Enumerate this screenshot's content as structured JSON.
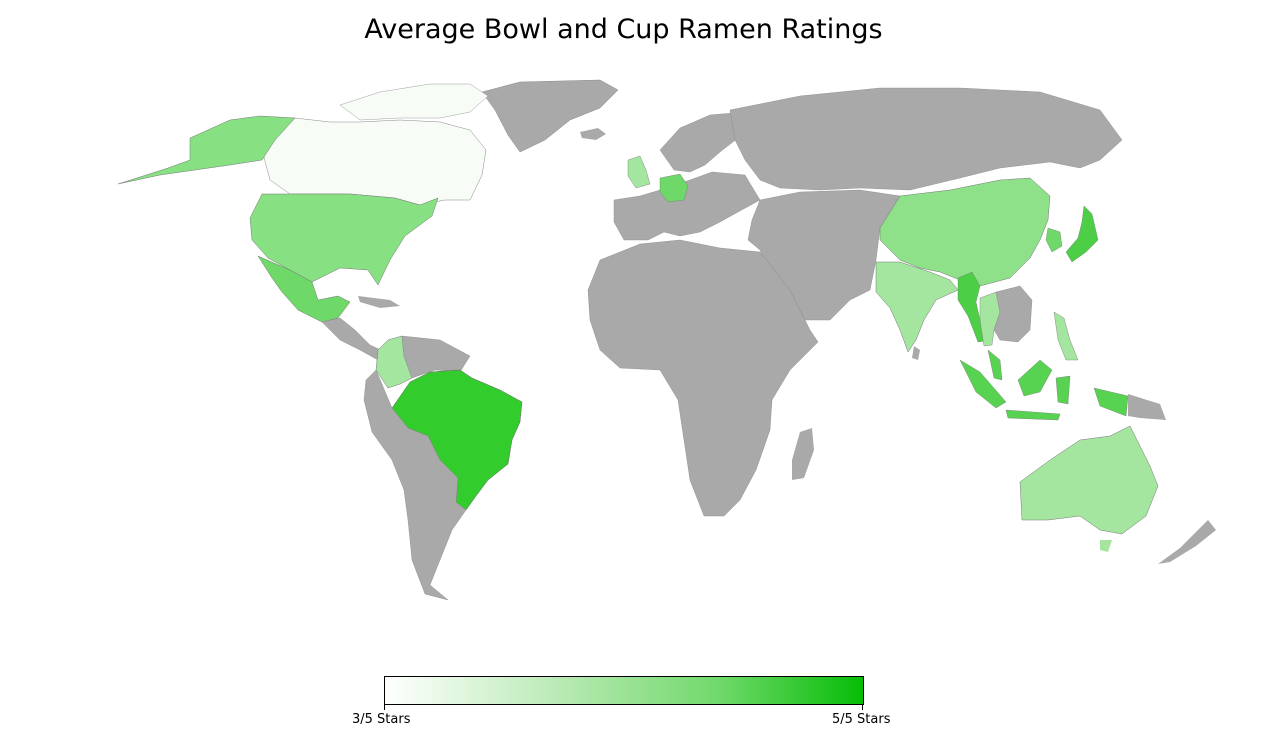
{
  "title": "Average Bowl and Cup Ramen Ratings",
  "colorbar": {
    "min_label": "3/5 Stars",
    "max_label": "5/5 Stars",
    "min_value": 3,
    "max_value": 5,
    "color_low": "#ffffff",
    "color_high": "#06bd06"
  },
  "no_data_color": "#a9a9a9",
  "rated_countries": [
    {
      "name": "Canada",
      "color": "#f7fcf7"
    },
    {
      "name": "United States",
      "color": "#87e082"
    },
    {
      "name": "Mexico",
      "color": "#6ed968"
    },
    {
      "name": "Colombia",
      "color": "#a4e69f"
    },
    {
      "name": "Brazil",
      "color": "#33cc2d"
    },
    {
      "name": "United Kingdom",
      "color": "#a4e69f"
    },
    {
      "name": "Germany",
      "color": "#6ed968"
    },
    {
      "name": "India",
      "color": "#a4e69f"
    },
    {
      "name": "China",
      "color": "#8ee189"
    },
    {
      "name": "Myanmar",
      "color": "#4ccf46"
    },
    {
      "name": "Thailand",
      "color": "#a4e69f"
    },
    {
      "name": "Japan",
      "color": "#4ccf46"
    },
    {
      "name": "South Korea",
      "color": "#6ed968"
    },
    {
      "name": "Malaysia",
      "color": "#57d351"
    },
    {
      "name": "Indonesia",
      "color": "#57d351"
    },
    {
      "name": "Philippines",
      "color": "#a4e69f"
    },
    {
      "name": "Australia",
      "color": "#a4e69f"
    }
  ]
}
